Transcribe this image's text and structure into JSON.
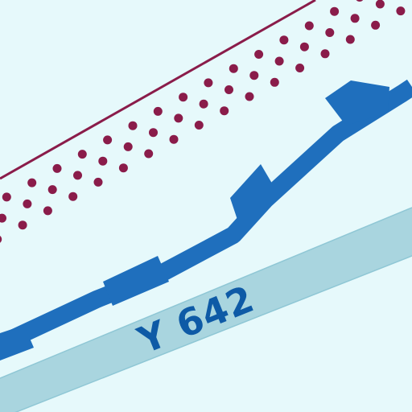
{
  "map": {
    "route_label": "Y 642",
    "colors": {
      "background": "#e6f9fb",
      "road_fill": "#a9d5df",
      "road_edge": "#7fbccd",
      "label_text": "#0e5aa6",
      "blue_route": "#1f6fbd",
      "maroon_boundary": "#8a1c4a",
      "maroon_dots": "#8a1c4a"
    },
    "features": [
      {
        "name": "maroon-boundary-line",
        "type": "solid-line"
      },
      {
        "name": "maroon-dotted-band",
        "type": "dots"
      },
      {
        "name": "blue-route",
        "type": "thick-line"
      },
      {
        "name": "road-y642",
        "type": "road"
      }
    ]
  }
}
